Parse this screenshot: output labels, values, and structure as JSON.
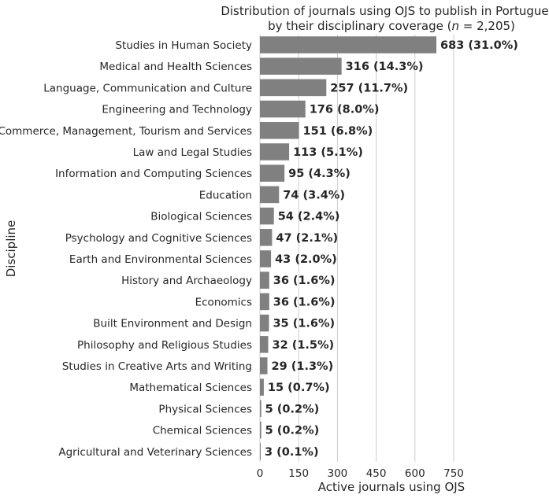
{
  "chart_data": {
    "type": "bar",
    "orientation": "horizontal",
    "title_line1": "Distribution of journals using OJS to publish in Portuguese",
    "title_line2_pre": "by their disciplinary coverage (",
    "title_line2_n": "n",
    "title_line2_post": " = 2,205)",
    "xlabel": "Active journals using OJS",
    "ylabel": "Discipline",
    "xlim": [
      0,
      800
    ],
    "xticks": [
      0,
      150,
      300,
      450,
      600,
      750
    ],
    "xtick_labels": [
      "0",
      "150",
      "300",
      "450",
      "600",
      "750"
    ],
    "grid": "vertical",
    "bar_color": "#808080",
    "categories": [
      "Studies in Human Society",
      "Medical and Health Sciences",
      "Language, Communication and Culture",
      "Engineering and Technology",
      "Commerce, Management, Tourism and Services",
      "Law and Legal Studies",
      "Information and Computing Sciences",
      "Education",
      "Biological Sciences",
      "Psychology and Cognitive Sciences",
      "Earth and Environmental Sciences",
      "History and Archaeology",
      "Economics",
      "Built Environment and Design",
      "Philosophy and Religious Studies",
      "Studies in Creative Arts and Writing",
      "Mathematical Sciences",
      "Physical Sciences",
      "Chemical Sciences",
      "Agricultural and Veterinary Sciences"
    ],
    "values": [
      683,
      316,
      257,
      176,
      151,
      113,
      95,
      74,
      54,
      47,
      43,
      36,
      36,
      35,
      32,
      29,
      15,
      5,
      5,
      3
    ],
    "data_labels": [
      "683 (31.0%)",
      "316 (14.3%)",
      "257 (11.7%)",
      "176 (8.0%)",
      "151 (6.8%)",
      "113 (5.1%)",
      "95 (4.3%)",
      "74 (3.4%)",
      "54 (2.4%)",
      "47 (2.1%)",
      "43 (2.0%)",
      "36 (1.6%)",
      "36 (1.6%)",
      "35 (1.6%)",
      "32 (1.5%)",
      "29 (1.3%)",
      "15 (0.7%)",
      "5 (0.2%)",
      "5 (0.2%)",
      "3 (0.1%)"
    ]
  }
}
